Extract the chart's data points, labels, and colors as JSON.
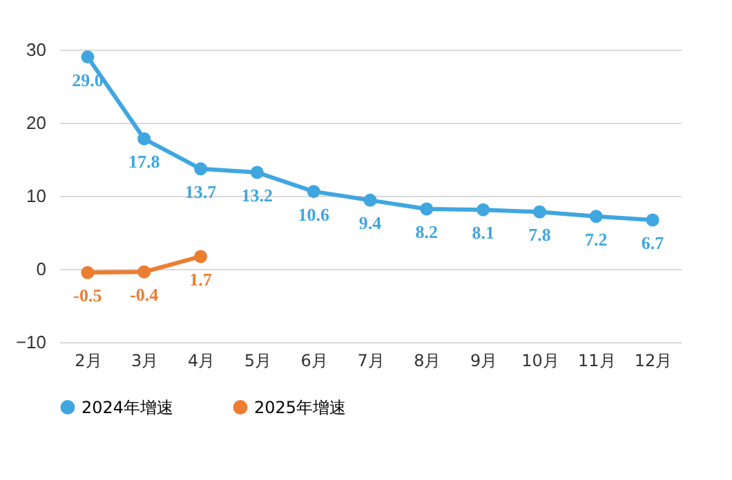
{
  "chart_data": {
    "type": "line",
    "categories": [
      "2月",
      "3月",
      "4月",
      "5月",
      "6月",
      "7月",
      "8月",
      "9月",
      "10月",
      "11月",
      "12月"
    ],
    "series": [
      {
        "name": "2024年增速",
        "color": "#3fa6e0",
        "values": [
          29.0,
          17.8,
          13.7,
          13.2,
          10.6,
          9.4,
          8.2,
          8.1,
          7.8,
          7.2,
          6.7
        ],
        "value_labels": [
          "29.0",
          "17.8",
          "13.7",
          "13.2",
          "10.6",
          "9.4",
          "8.2",
          "8.1",
          "7.8",
          "7.2",
          "6.7"
        ]
      },
      {
        "name": "2025年增速",
        "color": "#ed7d31",
        "values": [
          -0.5,
          -0.4,
          1.7,
          null,
          null,
          null,
          null,
          null,
          null,
          null,
          null
        ],
        "value_labels": [
          "-0.5",
          "-0.4",
          "1.7",
          null,
          null,
          null,
          null,
          null,
          null,
          null,
          null
        ]
      }
    ],
    "ylim": [
      -10,
      30
    ],
    "yticks": [
      -10,
      0,
      10,
      20,
      30
    ],
    "grid": "y",
    "legend": "bottom",
    "marker": "circle",
    "line_style": "solid"
  }
}
